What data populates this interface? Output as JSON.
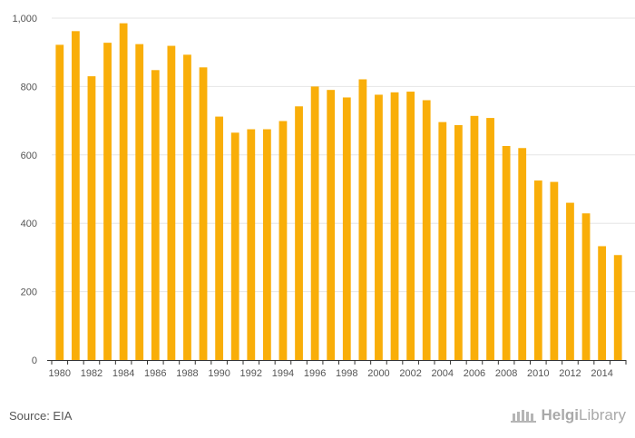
{
  "source_label": "Source: EIA",
  "brand": {
    "part1": "Helgi",
    "part2": "Library"
  },
  "colors": {
    "bar": "#F9AE09",
    "grid": "#e6e6e6",
    "axis": "#333333",
    "tick_text": "#555555"
  },
  "chart_data": {
    "type": "bar",
    "title": "",
    "xlabel": "",
    "ylabel": "",
    "ylim": [
      0,
      1000
    ],
    "y_ticks": [
      0,
      200,
      400,
      600,
      800,
      1000
    ],
    "y_tick_labels": [
      "0",
      "200",
      "400",
      "600",
      "800",
      "1,000"
    ],
    "x_tick_labels": [
      "1980",
      "1982",
      "1984",
      "1986",
      "1988",
      "1990",
      "1992",
      "1994",
      "1996",
      "1998",
      "2000",
      "2002",
      "2004",
      "2006",
      "2008",
      "2010",
      "2012",
      "2014"
    ],
    "grid": true,
    "legend": "none",
    "categories": [
      "1980",
      "1981",
      "1982",
      "1983",
      "1984",
      "1985",
      "1986",
      "1987",
      "1988",
      "1989",
      "1990",
      "1991",
      "1992",
      "1993",
      "1994",
      "1995",
      "1996",
      "1997",
      "1998",
      "1999",
      "2000",
      "2001",
      "2002",
      "2003",
      "2004",
      "2005",
      "2006",
      "2007",
      "2008",
      "2009",
      "2010",
      "2011",
      "2012",
      "2013",
      "2014",
      "2015"
    ],
    "values": [
      922,
      962,
      830,
      928,
      985,
      924,
      848,
      919,
      893,
      856,
      712,
      665,
      675,
      675,
      699,
      742,
      800,
      790,
      768,
      821,
      776,
      783,
      785,
      760,
      696,
      687,
      714,
      708,
      626,
      620,
      525,
      521,
      460,
      429,
      333,
      307
    ]
  }
}
